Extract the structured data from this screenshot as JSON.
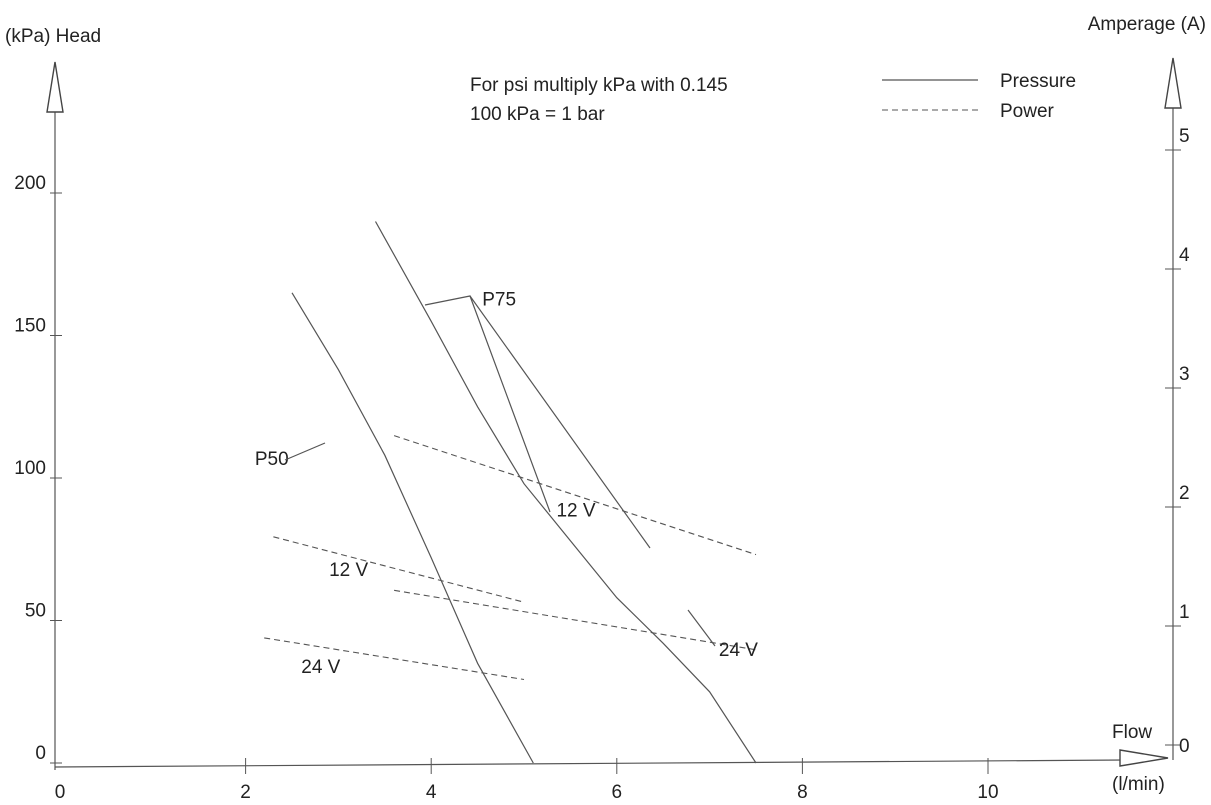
{
  "chart_data": {
    "type": "line",
    "title": "",
    "notes": [
      "For psi multiply kPa with 0.145",
      "100 kPa = 1 bar"
    ],
    "y_left_label": "(kPa) Head",
    "y_right_label": "Amperage (A)",
    "x_label_top": "Flow",
    "x_label_bottom": "(l/min)",
    "xlim": [
      0,
      12
    ],
    "ylim_left": [
      0,
      220
    ],
    "ylim_right": [
      0,
      5.5
    ],
    "x_ticks": [
      0,
      2,
      4,
      6,
      8,
      10
    ],
    "y_left_ticks": [
      0,
      50,
      100,
      150,
      200
    ],
    "y_right_ticks": [
      0,
      1,
      2,
      3,
      4,
      5
    ],
    "legend": [
      {
        "label": "Pressure",
        "style": "solid"
      },
      {
        "label": "Power",
        "style": "dashed"
      }
    ],
    "legend_position": "top-right",
    "series": [
      {
        "kind": "pressure",
        "axis": "left",
        "model": "P50",
        "x": [
          2.5,
          3.0,
          3.5,
          4.0,
          4.5,
          5.1
        ],
        "y": [
          165,
          138,
          108,
          72,
          35,
          0
        ]
      },
      {
        "kind": "pressure",
        "axis": "left",
        "model": "P75",
        "x": [
          3.4,
          4.0,
          4.5,
          5.0,
          5.5,
          6.0,
          6.5,
          7.0,
          7.5
        ],
        "y": [
          190,
          155,
          125,
          98,
          78,
          58,
          42,
          25,
          0
        ]
      },
      {
        "kind": "power",
        "axis": "right",
        "model": "P75",
        "voltage": "12 V",
        "x": [
          3.6,
          7.5
        ],
        "y": [
          2.6,
          1.6
        ]
      },
      {
        "kind": "power",
        "axis": "right",
        "model": "P50",
        "voltage": "12 V",
        "x": [
          2.3,
          5.0
        ],
        "y": [
          1.75,
          1.2
        ]
      },
      {
        "kind": "power",
        "axis": "right",
        "model": "P75",
        "voltage": "24 V",
        "x": [
          3.6,
          7.5
        ],
        "y": [
          1.3,
          0.8
        ]
      },
      {
        "kind": "power",
        "axis": "right",
        "model": "P50",
        "voltage": "24 V",
        "x": [
          2.2,
          5.0
        ],
        "y": [
          0.9,
          0.55
        ]
      }
    ],
    "annotations": [
      {
        "text": "P75",
        "x": 4.55,
        "y": 163
      },
      {
        "text": "P50",
        "x": 2.1,
        "y": 107
      },
      {
        "text": "12 V",
        "x": 5.35,
        "y": 89
      },
      {
        "text": "12 V",
        "x": 2.9,
        "y": 68
      },
      {
        "text": "24 V",
        "x": 7.1,
        "y": 40
      },
      {
        "text": "24 V",
        "x": 2.6,
        "y": 34
      }
    ],
    "grid": false
  }
}
